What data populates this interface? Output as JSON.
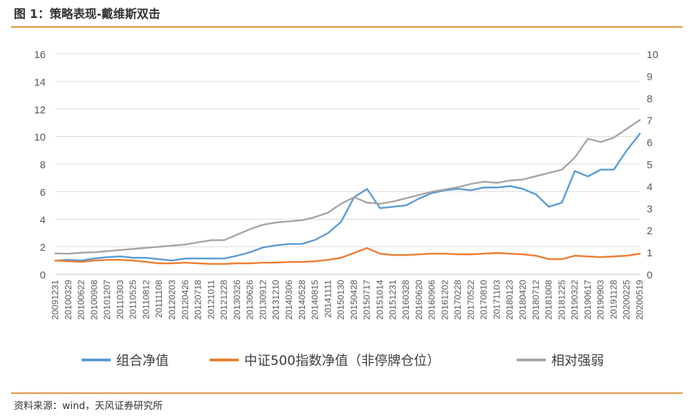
{
  "header": {
    "title": "图 1：策略表现-戴维斯双击"
  },
  "footer": {
    "source": "资料来源：wind，天风证券研究所"
  },
  "chart_data": {
    "type": "line",
    "x": [
      "20091231",
      "20100329",
      "20100622",
      "20100908",
      "20101207",
      "20110303",
      "20110525",
      "20110812",
      "20111108",
      "20120203",
      "20120426",
      "20120718",
      "20121011",
      "20121228",
      "20130326",
      "20130626",
      "20130912",
      "20131210",
      "20140306",
      "20140528",
      "20140815",
      "20141111",
      "20150130",
      "20150428",
      "20150717",
      "20151014",
      "20151231",
      "20160328",
      "20160620",
      "20160906",
      "20161202",
      "20170228",
      "20170522",
      "20170810",
      "20171103",
      "20180123",
      "20180420",
      "20180712",
      "20181008",
      "20181225",
      "20190322",
      "20190617",
      "20190903",
      "20191128",
      "20200225",
      "20200519"
    ],
    "xlabels": [
      "20091231",
      "20100329",
      "20100622",
      "20100908",
      "20101207",
      "20110303",
      "20110525",
      "20110812",
      "20111108",
      "20120203",
      "20120426",
      "20120718",
      "20121011",
      "20121228",
      "20130326",
      "20130626",
      "20130912",
      "20131210",
      "20140306",
      "20140528",
      "20140815",
      "20141111",
      "20150130",
      "20150428",
      "20150717",
      "20151014",
      "20151231",
      "20160328",
      "20160620",
      "20160906",
      "20161202",
      "20170228",
      "20170522",
      "20170810",
      "20171103",
      "20180123",
      "20180420",
      "20180712",
      "20181008",
      "20181225",
      "20190322",
      "20190617",
      "20190903",
      "20191128",
      "20200225",
      "20200519"
    ],
    "ylim_left": [
      0,
      16
    ],
    "yticks_left": [
      0,
      2,
      4,
      6,
      8,
      10,
      12,
      14,
      16
    ],
    "ylim_right": [
      0,
      10
    ],
    "yticks_right": [
      0,
      1,
      2,
      3,
      4,
      5,
      6,
      7,
      8,
      9,
      10
    ],
    "grid": true,
    "legend_position": "bottom",
    "series": [
      {
        "name": "组合净值",
        "axis": "left",
        "color": "#5b9bd5",
        "values": [
          1.0,
          1.05,
          1.0,
          1.15,
          1.25,
          1.3,
          1.2,
          1.2,
          1.1,
          1.0,
          1.15,
          1.15,
          1.15,
          1.15,
          1.35,
          1.6,
          1.95,
          2.1,
          2.2,
          2.2,
          2.5,
          3.0,
          3.8,
          5.6,
          6.2,
          4.8,
          4.9,
          5.0,
          5.5,
          5.9,
          6.1,
          6.2,
          6.1,
          6.3,
          6.3,
          6.4,
          6.2,
          5.8,
          4.9,
          5.2,
          7.5,
          7.1,
          7.6,
          7.6,
          9.0,
          10.2
        ]
      },
      {
        "name": "中证500指数净值（非停牌仓位）",
        "axis": "left",
        "color": "#ed7d31",
        "values": [
          1.0,
          0.95,
          0.9,
          1.0,
          1.05,
          1.05,
          1.0,
          0.9,
          0.8,
          0.8,
          0.85,
          0.8,
          0.75,
          0.75,
          0.8,
          0.8,
          0.85,
          0.85,
          0.9,
          0.9,
          0.95,
          1.05,
          1.2,
          1.55,
          1.9,
          1.5,
          1.4,
          1.4,
          1.45,
          1.5,
          1.5,
          1.45,
          1.45,
          1.5,
          1.55,
          1.5,
          1.45,
          1.35,
          1.1,
          1.1,
          1.35,
          1.3,
          1.25,
          1.3,
          1.35,
          1.5
        ]
      },
      {
        "name": "相对强弱",
        "axis": "right",
        "color": "#a5a5a5",
        "values": [
          0.95,
          0.93,
          0.98,
          1.0,
          1.05,
          1.1,
          1.15,
          1.2,
          1.25,
          1.3,
          1.35,
          1.45,
          1.55,
          1.55,
          1.8,
          2.05,
          2.25,
          2.35,
          2.4,
          2.45,
          2.6,
          2.8,
          3.2,
          3.5,
          3.25,
          3.2,
          3.3,
          3.45,
          3.6,
          3.75,
          3.85,
          3.95,
          4.1,
          4.2,
          4.15,
          4.25,
          4.3,
          4.45,
          4.6,
          4.75,
          5.3,
          6.15,
          6.0,
          6.2,
          6.6,
          7.0
        ]
      }
    ]
  }
}
